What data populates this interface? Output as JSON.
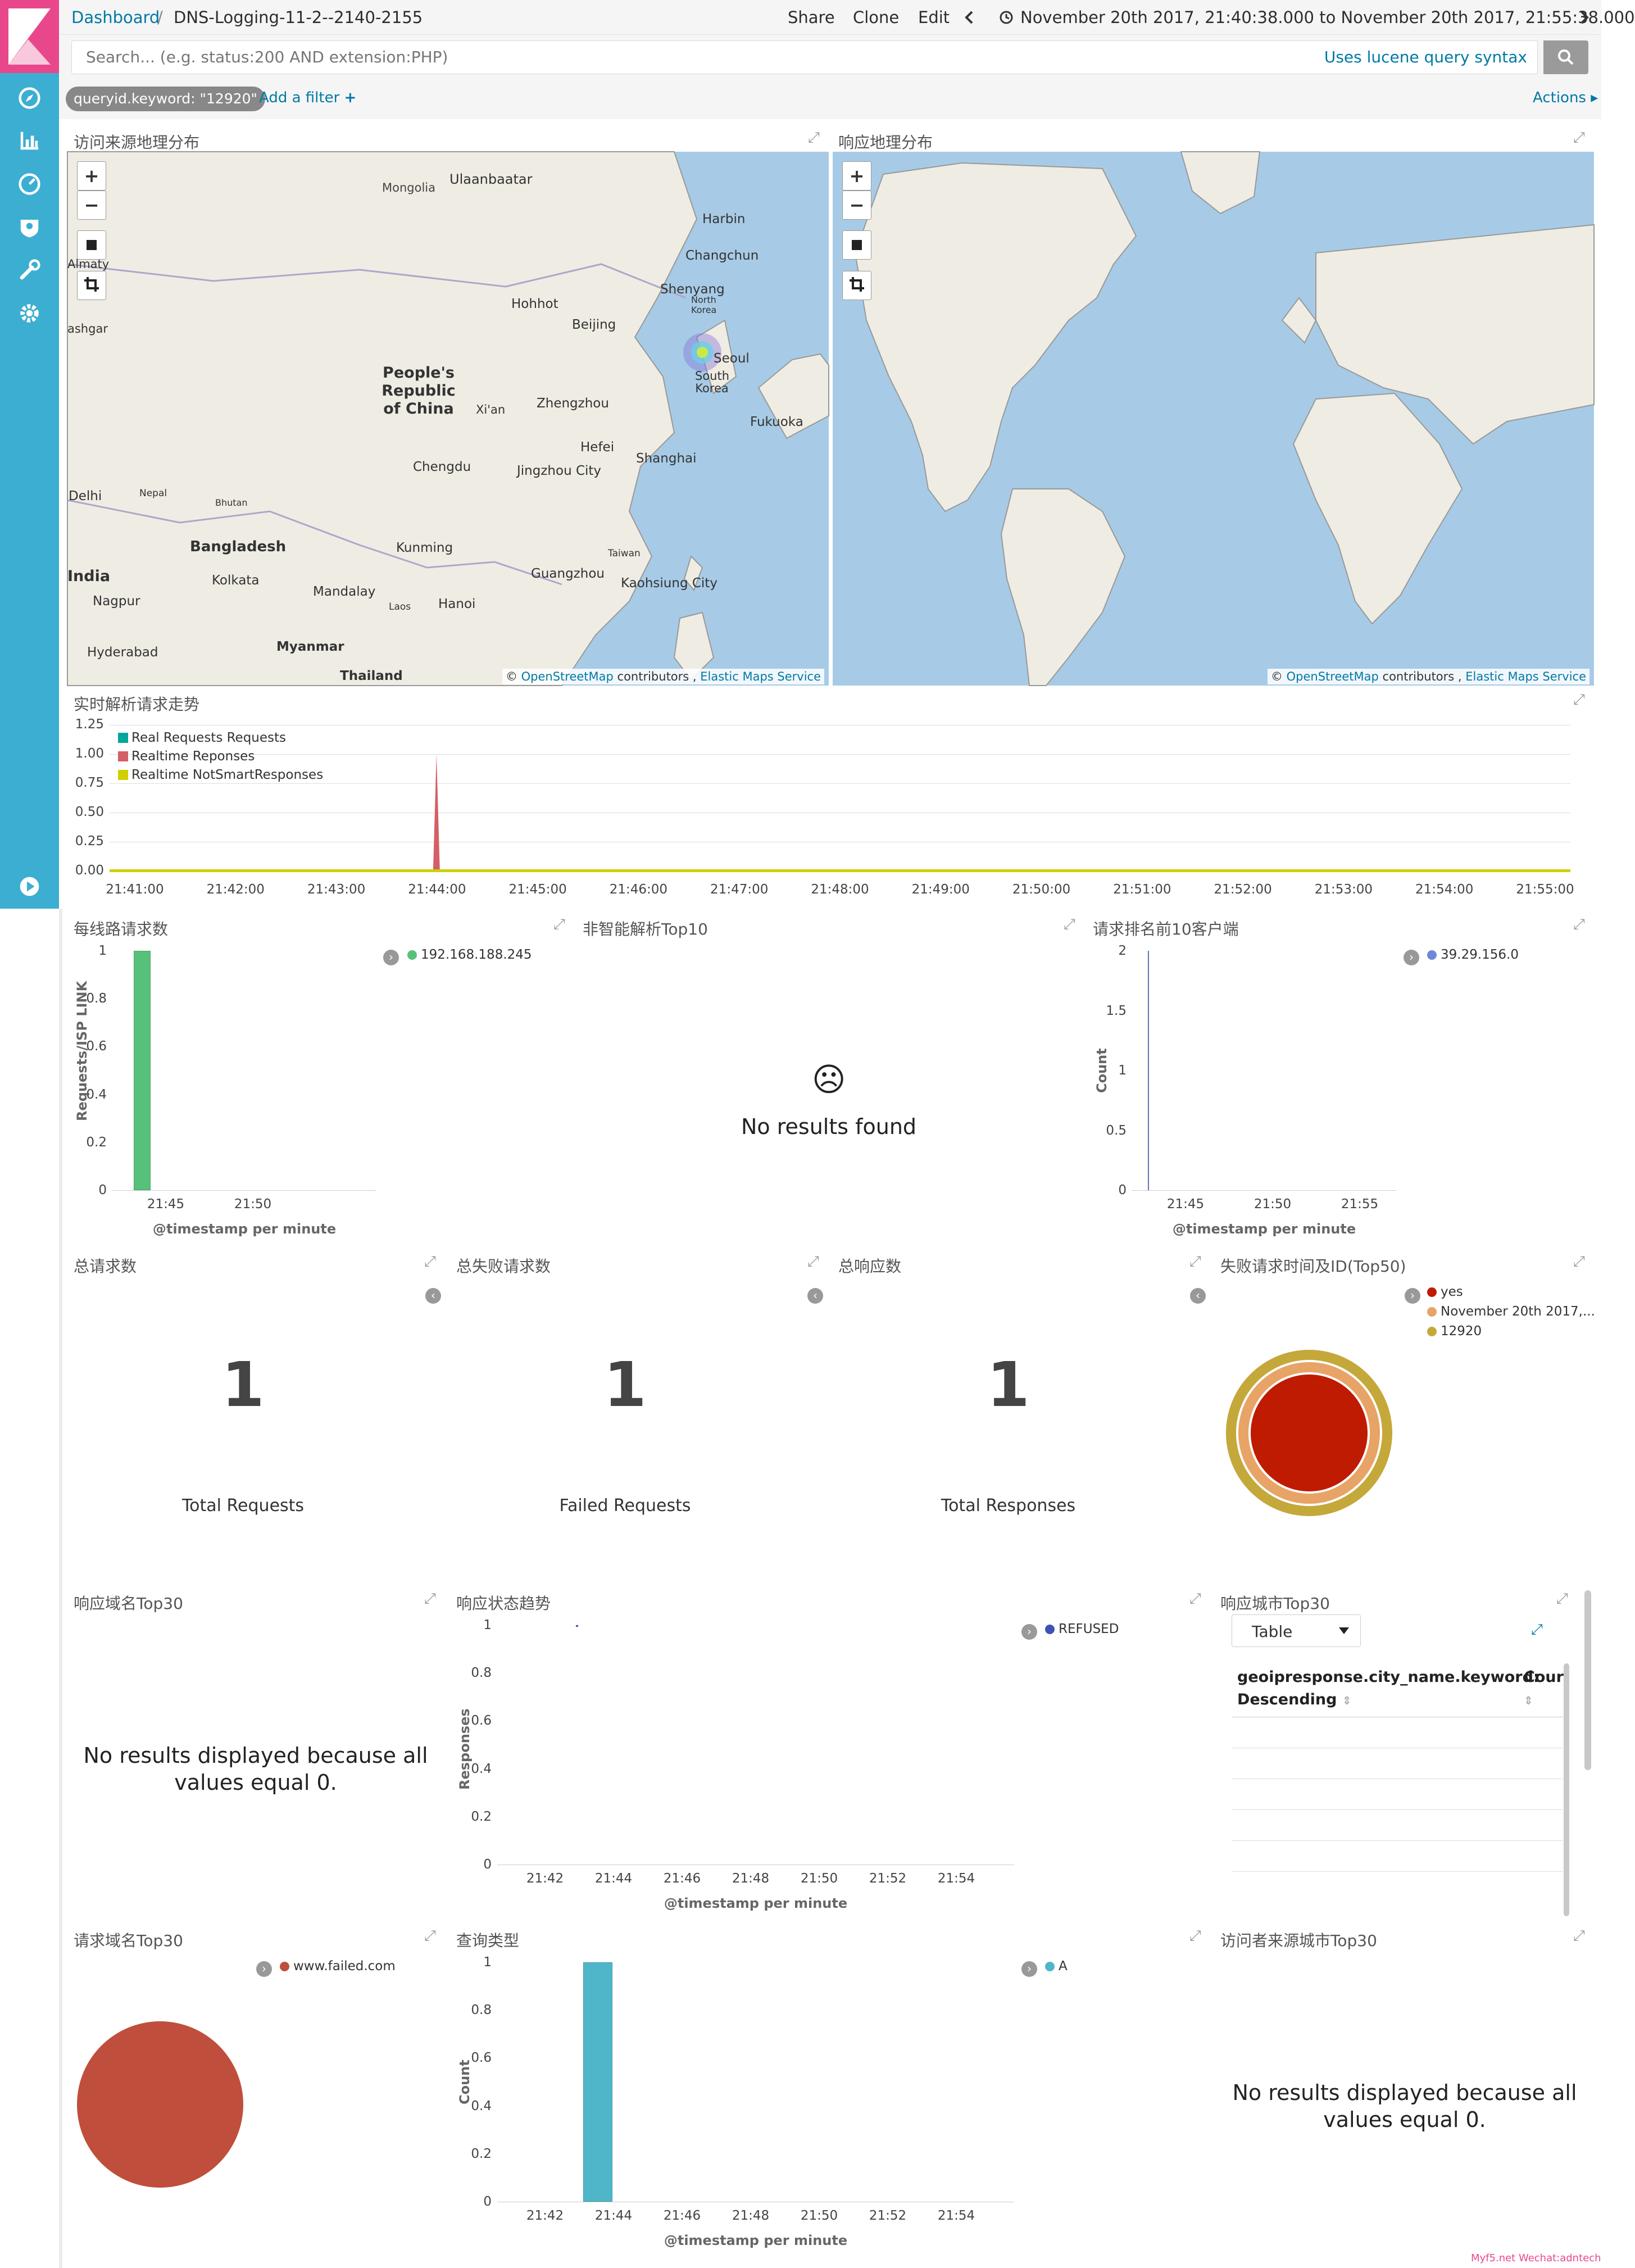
{
  "breadcrumb": {
    "root": "Dashboard",
    "separator": "/",
    "current": "DNS-Logging-11-2--2140-2155"
  },
  "toolbar": {
    "share": "Share",
    "clone": "Clone",
    "edit": "Edit",
    "time_range": "November 20th 2017, 21:40:38.000 to November 20th 2017, 21:55:38.000"
  },
  "search": {
    "placeholder": "Search... (e.g. status:200 AND extension:PHP)",
    "syntax_link": "Uses lucene query syntax"
  },
  "filters": {
    "active": "queryid.keyword: \"12920\"",
    "add": "Add a filter",
    "add_icon": "+",
    "actions": "Actions"
  },
  "panels": {
    "map_source": {
      "title": "访问来源地理分布"
    },
    "map_response": {
      "title": "响应地理分布"
    },
    "map_controls": {
      "zoom_in": "+",
      "zoom_out": "−"
    },
    "attribution": {
      "prefix": "©",
      "osm": "OpenStreetMap",
      "contributors": " contributors , ",
      "ems": "Elastic Maps Service"
    },
    "realtime": {
      "title": "实时解析请求走势"
    },
    "isp": {
      "title": "每线路请求数"
    },
    "notsmart": {
      "title": "非智能解析Top10",
      "empty_icon": "☹",
      "empty": "No results found"
    },
    "topclients": {
      "title": "请求排名前10客户端"
    },
    "total_requests": {
      "title": "总请求数",
      "value": "1",
      "label": "Total Requests"
    },
    "failed_requests": {
      "title": "总失败请求数",
      "value": "1",
      "label": "Failed Requests"
    },
    "total_responses": {
      "title": "总响应数",
      "value": "1",
      "label": "Total Responses"
    },
    "failed_ids": {
      "title": "失败请求时间及ID(Top50)",
      "legend": [
        "yes",
        "November 20th 2017,...",
        "12920"
      ]
    },
    "resp_domain": {
      "title": "响应域名Top30",
      "empty": "No results displayed because all values equal 0."
    },
    "resp_status": {
      "title": "响应状态趋势"
    },
    "resp_city": {
      "title": "响应城市Top30",
      "select_value": "Table",
      "col1_line1": "geoipresponse.city_name.keyword:",
      "col1_line2": "Descending",
      "col2": "Cour"
    },
    "req_domain": {
      "title": "请求域名Top30",
      "legend": [
        "www.failed.com"
      ]
    },
    "query_type": {
      "title": "查询类型"
    },
    "visitor_city": {
      "title": "访问者来源城市Top30",
      "empty": "No results displayed because all values equal 0."
    }
  },
  "map_labels": {
    "source": [
      "Mongolia",
      "Ulaanbaatar",
      "Harbin",
      "Changchun",
      "Shenyang",
      "North Korea",
      "Almaty",
      "Hohhot",
      "Beijing",
      "ashgar",
      "Seoul",
      "South Korea",
      "People's Republic of China",
      "Xi'an",
      "Zhengzhou",
      "Fukuoka",
      "Hefei",
      "Shanghai",
      "Chengdu",
      "Jingzhou City",
      "Delhi",
      "Nepal",
      "Bhutan",
      "Bangladesh",
      "Kunming",
      "Taiwan",
      "India",
      "Kolkata",
      "Guangzhou",
      "Kaohsiung City",
      "Nagpur",
      "Mandalay",
      "Laos",
      "Hanoi",
      "Myanmar",
      "Hyderabad",
      "Thailand"
    ]
  },
  "chart_data": [
    {
      "type": "area",
      "panel": "实时解析请求走势",
      "x": [
        "21:41:00",
        "21:42:00",
        "21:43:00",
        "21:44:00",
        "21:45:00",
        "21:46:00",
        "21:47:00",
        "21:48:00",
        "21:49:00",
        "21:50:00",
        "21:51:00",
        "21:52:00",
        "21:53:00",
        "21:54:00",
        "21:55:00"
      ],
      "series": [
        {
          "name": "Real Requests Requests",
          "color": "#00a69b",
          "values": [
            0,
            0,
            0,
            0,
            0,
            0,
            0,
            0,
            0,
            0,
            0,
            0,
            0,
            0,
            0
          ]
        },
        {
          "name": "Realtime Reponses",
          "color": "#d36066",
          "values": [
            0,
            0,
            0,
            1,
            0,
            0,
            0,
            0,
            0,
            0,
            0,
            0,
            0,
            0,
            0
          ]
        },
        {
          "name": "Realtime NotSmartResponses",
          "color": "#cfd000",
          "values": [
            0,
            0,
            0,
            0,
            0,
            0,
            0,
            0,
            0,
            0,
            0,
            0,
            0,
            0,
            0
          ]
        }
      ],
      "yticks": [
        "1.25",
        "1.00",
        "0.75",
        "0.50",
        "0.25",
        "0.00"
      ],
      "ylim": [
        0,
        1.25
      ]
    },
    {
      "type": "bar",
      "panel": "每线路请求数",
      "xticks": [
        "21:45",
        "21:50"
      ],
      "yticks": [
        "1",
        "0.8",
        "0.6",
        "0.4",
        "0.2",
        "0"
      ],
      "ylabel": "Requests/ISP LINK",
      "xlabel": "@timestamp per minute",
      "series": [
        {
          "name": "192.168.188.245",
          "color": "#57c17b",
          "x": "21:43",
          "value": 1
        }
      ],
      "ylim": [
        0,
        1
      ]
    },
    {
      "type": "bar",
      "panel": "请求排名前10客户端",
      "xticks": [
        "21:45",
        "21:50",
        "21:55"
      ],
      "yticks": [
        "2",
        "1.5",
        "1",
        "0.5",
        "0"
      ],
      "ylabel": "Count",
      "xlabel": "@timestamp per minute",
      "series": [
        {
          "name": "39.29.156.0",
          "color": "#6f87d8",
          "x": "21:43",
          "value": 2
        }
      ],
      "ylim": [
        0,
        2
      ]
    },
    {
      "type": "pie",
      "panel": "失败请求时间及ID(Top50)",
      "rings": [
        {
          "label": "yes",
          "color": "#bf1b00",
          "value": 1
        },
        {
          "label": "November 20th 2017,...",
          "color": "#e7a466",
          "value": 1
        },
        {
          "label": "12920",
          "color": "#c4a83a",
          "value": 1
        }
      ]
    },
    {
      "type": "line",
      "panel": "响应状态趋势",
      "xticks": [
        "21:42",
        "21:44",
        "21:46",
        "21:48",
        "21:50",
        "21:52",
        "21:54"
      ],
      "yticks": [
        "1",
        "0.8",
        "0.6",
        "0.4",
        "0.2",
        "0"
      ],
      "ylabel": "Responses",
      "xlabel": "@timestamp per minute",
      "series": [
        {
          "name": "REFUSED",
          "color": "#3f51b5",
          "x": "21:43",
          "value": 1
        }
      ],
      "ylim": [
        0,
        1
      ]
    },
    {
      "type": "pie",
      "panel": "请求域名Top30",
      "slices": [
        {
          "label": "www.failed.com",
          "color": "#c04e3c",
          "value": 1
        }
      ]
    },
    {
      "type": "bar",
      "panel": "查询类型",
      "xticks": [
        "21:42",
        "21:44",
        "21:46",
        "21:48",
        "21:50",
        "21:52",
        "21:54"
      ],
      "yticks": [
        "1",
        "0.8",
        "0.6",
        "0.4",
        "0.2",
        "0"
      ],
      "ylabel": "Count",
      "xlabel": "@timestamp per minute",
      "series": [
        {
          "name": "A",
          "color": "#4fb6c9",
          "x": "21:43",
          "value": 1
        }
      ],
      "ylim": [
        0,
        1
      ]
    }
  ],
  "footer": {
    "watermark": "Myf5.net Wechat:adntech"
  },
  "colors": {
    "sidebar": "#3caed2",
    "logo": "#e8488b",
    "link": "#0079a5"
  }
}
